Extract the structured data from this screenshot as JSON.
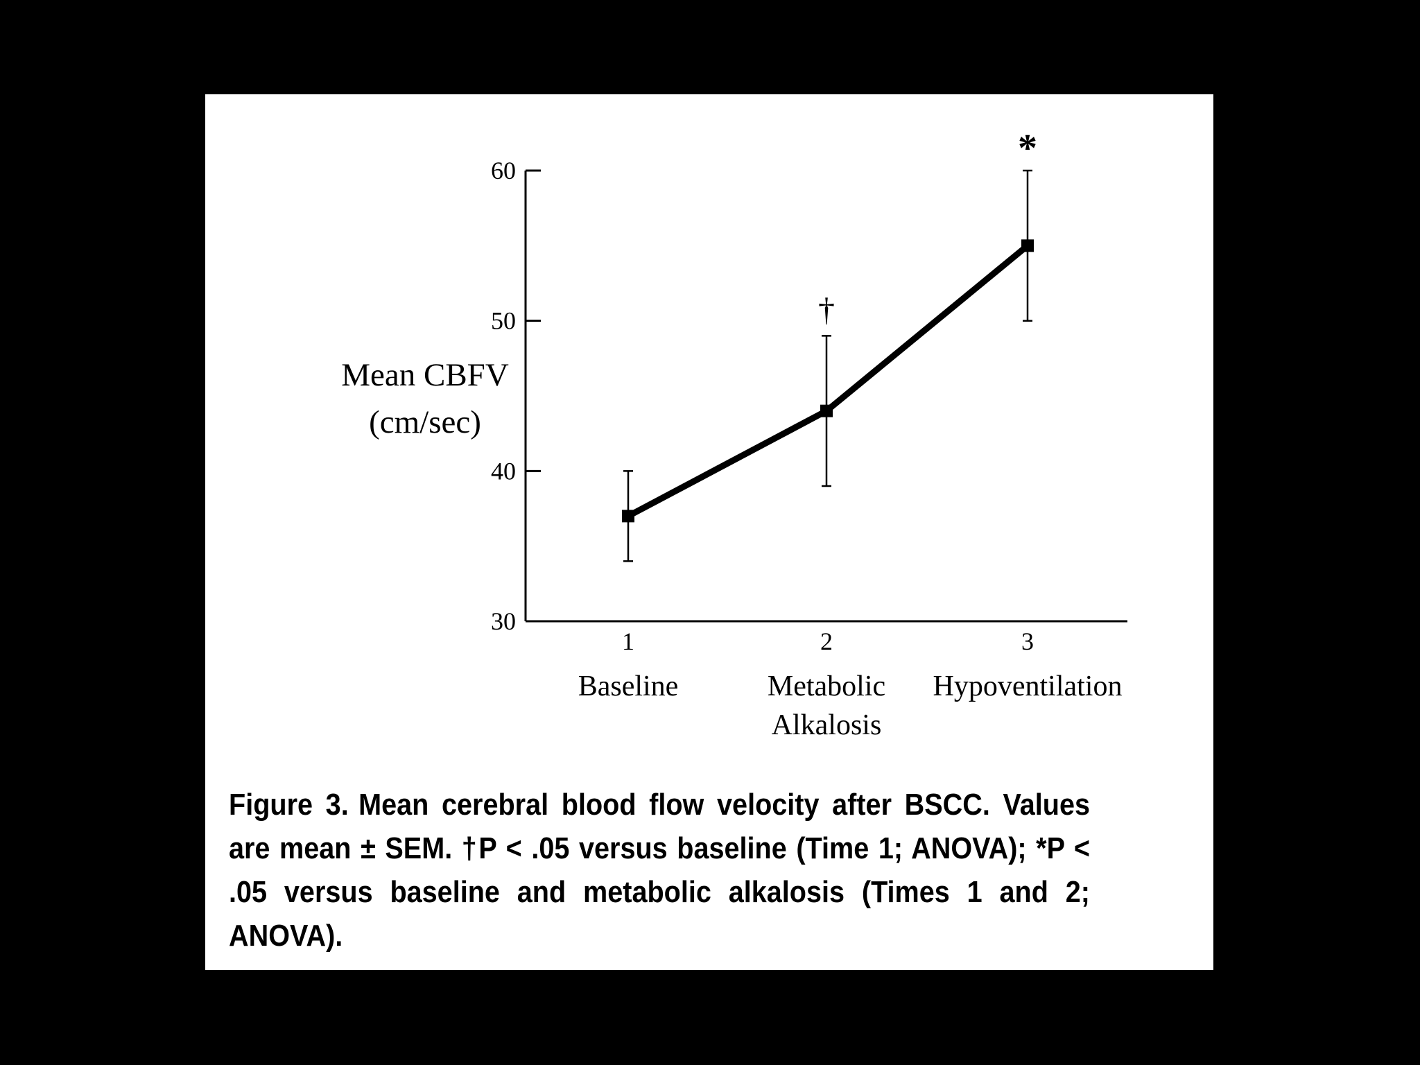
{
  "chart_data": {
    "type": "line",
    "title": "",
    "ylabel_lines": [
      "Mean CBFV",
      "(cm/sec)"
    ],
    "xlabel": "",
    "ylim": [
      30,
      60
    ],
    "yticks": [
      30,
      40,
      50,
      60
    ],
    "x": [
      1,
      2,
      3
    ],
    "categories": [
      {
        "tick": "1",
        "label_lines": [
          "Baseline"
        ]
      },
      {
        "tick": "2",
        "label_lines": [
          "Metabolic",
          "Alkalosis"
        ]
      },
      {
        "tick": "3",
        "label_lines": [
          "Hypoventilation"
        ]
      }
    ],
    "series": [
      {
        "values": [
          37,
          44,
          55
        ],
        "error": [
          3,
          5,
          5
        ]
      }
    ],
    "significance_markers": [
      "",
      "†",
      "*"
    ],
    "grid": false,
    "legend": false,
    "line_color": "#000000"
  },
  "caption": {
    "figure_number": "Figure 3.",
    "text": "Mean cerebral blood flow velocity after BSCC. Values are mean ± SEM. †P < .05 versus baseline (Time 1; ANOVA); *P < .05 versus baseline and metabolic alkalosis (Times 1 and 2; ANOVA)."
  }
}
